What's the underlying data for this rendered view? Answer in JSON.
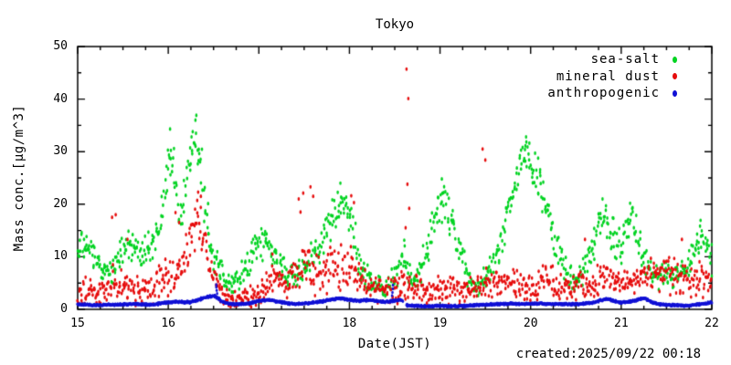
{
  "created_label": "created:2025/09/22 00:18",
  "chart_data": {
    "type": "scatter",
    "title": "Tokyo",
    "xlabel": "Date(JST)",
    "ylabel": "Mass conc.[μg/m^3]",
    "xlim": [
      15,
      22
    ],
    "ylim": [
      0,
      50
    ],
    "x_ticks": [
      15,
      16,
      17,
      18,
      19,
      20,
      21,
      22
    ],
    "y_ticks": [
      0,
      10,
      20,
      30,
      40,
      50
    ],
    "x_minor_step": 0.25,
    "y_minor_step": 5,
    "grid": false,
    "legend_position": "top-right-inside",
    "frame_color": "#000000",
    "background": "#ffffff",
    "series": [
      {
        "name": "sea-salt",
        "color": "#00d321",
        "marker": "dot",
        "marker_rx": 1.3,
        "marker_ry": 2.1,
        "samples_per_day": 144,
        "spread_default": 3,
        "envelope": [
          [
            15.0,
            11,
            3
          ],
          [
            15.1,
            12,
            3
          ],
          [
            15.2,
            9,
            3
          ],
          [
            15.3,
            7,
            2.5
          ],
          [
            15.4,
            8,
            3
          ],
          [
            15.5,
            11,
            3
          ],
          [
            15.6,
            12,
            3
          ],
          [
            15.7,
            10,
            3
          ],
          [
            15.8,
            12,
            3.5
          ],
          [
            15.9,
            15,
            4
          ],
          [
            15.95,
            20,
            5
          ],
          [
            16.0,
            28,
            5
          ],
          [
            16.05,
            30,
            4
          ],
          [
            16.1,
            20,
            5
          ],
          [
            16.15,
            17,
            4
          ],
          [
            16.2,
            24,
            5
          ],
          [
            16.25,
            30,
            4
          ],
          [
            16.3,
            34,
            3
          ],
          [
            16.35,
            29,
            5
          ],
          [
            16.4,
            22,
            6
          ],
          [
            16.45,
            15,
            4
          ],
          [
            16.5,
            10,
            3
          ],
          [
            16.6,
            7,
            2.5
          ],
          [
            16.7,
            5,
            2
          ],
          [
            16.8,
            6,
            2.5
          ],
          [
            16.9,
            9,
            3
          ],
          [
            17.0,
            13,
            3.5
          ],
          [
            17.1,
            12,
            3
          ],
          [
            17.2,
            9,
            3
          ],
          [
            17.3,
            7,
            2.5
          ],
          [
            17.4,
            6,
            2.5
          ],
          [
            17.5,
            8,
            3
          ],
          [
            17.6,
            10,
            3
          ],
          [
            17.7,
            13,
            3.5
          ],
          [
            17.8,
            17,
            4
          ],
          [
            17.9,
            20,
            3.5
          ],
          [
            18.0,
            17,
            4
          ],
          [
            18.05,
            14,
            4
          ],
          [
            18.1,
            9,
            3
          ],
          [
            18.2,
            6,
            2.5
          ],
          [
            18.3,
            4.5,
            2
          ],
          [
            18.4,
            4,
            2
          ],
          [
            18.5,
            6,
            3
          ],
          [
            18.6,
            9,
            4
          ],
          [
            18.7,
            5,
            2
          ],
          [
            18.8,
            8,
            3
          ],
          [
            18.9,
            14,
            4
          ],
          [
            19.0,
            20,
            4
          ],
          [
            19.05,
            21,
            3
          ],
          [
            19.1,
            18,
            4
          ],
          [
            19.2,
            12,
            4
          ],
          [
            19.3,
            6,
            2.5
          ],
          [
            19.4,
            4,
            2
          ],
          [
            19.5,
            6,
            3
          ],
          [
            19.6,
            9,
            3
          ],
          [
            19.7,
            14,
            4
          ],
          [
            19.8,
            22,
            4
          ],
          [
            19.9,
            28,
            4
          ],
          [
            19.95,
            30,
            3
          ],
          [
            20.0,
            28,
            4
          ],
          [
            20.1,
            24,
            4
          ],
          [
            20.2,
            17,
            4
          ],
          [
            20.3,
            12,
            4
          ],
          [
            20.4,
            7,
            3
          ],
          [
            20.5,
            5,
            2
          ],
          [
            20.6,
            8,
            3
          ],
          [
            20.7,
            13,
            4
          ],
          [
            20.8,
            18,
            3.5
          ],
          [
            20.9,
            14,
            4
          ],
          [
            21.0,
            12,
            4
          ],
          [
            21.1,
            19,
            3.5
          ],
          [
            21.2,
            13,
            4
          ],
          [
            21.3,
            8,
            3
          ],
          [
            21.4,
            6,
            2.5
          ],
          [
            21.5,
            7,
            3
          ],
          [
            21.6,
            6,
            3
          ],
          [
            21.7,
            7,
            3
          ],
          [
            21.8,
            11,
            4
          ],
          [
            21.9,
            15,
            3.5
          ],
          [
            22.0,
            9,
            3
          ]
        ],
        "outliers": [
          [
            16.02,
            34.3
          ],
          [
            16.3,
            36.0
          ],
          [
            16.31,
            36.9
          ],
          [
            17.9,
            24.0
          ],
          [
            19.02,
            24.8
          ],
          [
            19.95,
            32.8
          ]
        ],
        "gaps": []
      },
      {
        "name": "mineral dust",
        "color": "#e60c0c",
        "marker": "dot",
        "marker_rx": 1.3,
        "marker_ry": 2.1,
        "samples_per_day": 144,
        "spread_default": 3,
        "envelope": [
          [
            15.0,
            3,
            2.5
          ],
          [
            15.1,
            4,
            3
          ],
          [
            15.2,
            3,
            2.5
          ],
          [
            15.3,
            4,
            3
          ],
          [
            15.4,
            5,
            3.5
          ],
          [
            15.5,
            4,
            3
          ],
          [
            15.6,
            4,
            3
          ],
          [
            15.7,
            3,
            2.5
          ],
          [
            15.8,
            4,
            3
          ],
          [
            15.9,
            5,
            3.5
          ],
          [
            16.0,
            7,
            4
          ],
          [
            16.1,
            6,
            3.5
          ],
          [
            16.2,
            10,
            5
          ],
          [
            16.3,
            15,
            5
          ],
          [
            16.35,
            17,
            4.5
          ],
          [
            16.4,
            12,
            5
          ],
          [
            16.5,
            6,
            3.5
          ],
          [
            16.6,
            3,
            2
          ],
          [
            16.7,
            2,
            1.5
          ],
          [
            16.8,
            2,
            1.5
          ],
          [
            16.9,
            2.5,
            2
          ],
          [
            17.0,
            3,
            2
          ],
          [
            17.1,
            5,
            3
          ],
          [
            17.2,
            6,
            3.5
          ],
          [
            17.3,
            5,
            3
          ],
          [
            17.4,
            6,
            4
          ],
          [
            17.5,
            8,
            5
          ],
          [
            17.6,
            7,
            4.5
          ],
          [
            17.7,
            6,
            4
          ],
          [
            17.8,
            8,
            4
          ],
          [
            17.9,
            8,
            4
          ],
          [
            18.0,
            8,
            4.5
          ],
          [
            18.1,
            6,
            3.5
          ],
          [
            18.2,
            5,
            3
          ],
          [
            18.3,
            4,
            3
          ],
          [
            18.4,
            3.5,
            2.5
          ],
          [
            18.5,
            4,
            3
          ],
          [
            18.6,
            5,
            3.5
          ],
          [
            18.7,
            4,
            3
          ],
          [
            18.8,
            4,
            3
          ],
          [
            18.9,
            3,
            2.5
          ],
          [
            19.0,
            4,
            3
          ],
          [
            19.1,
            4,
            3
          ],
          [
            19.2,
            4,
            3
          ],
          [
            19.3,
            3.5,
            2.5
          ],
          [
            19.4,
            4,
            3
          ],
          [
            19.5,
            5,
            3.5
          ],
          [
            19.6,
            5,
            3
          ],
          [
            19.7,
            4,
            3
          ],
          [
            19.8,
            5,
            3
          ],
          [
            19.9,
            5,
            3
          ],
          [
            20.0,
            4,
            3
          ],
          [
            20.1,
            5,
            3
          ],
          [
            20.2,
            6,
            3.5
          ],
          [
            20.3,
            4,
            3
          ],
          [
            20.4,
            4,
            2.5
          ],
          [
            20.5,
            4,
            2.5
          ],
          [
            20.6,
            5,
            3
          ],
          [
            20.7,
            5,
            3
          ],
          [
            20.8,
            6,
            3
          ],
          [
            20.9,
            6,
            3.5
          ],
          [
            21.0,
            5,
            3
          ],
          [
            21.1,
            5,
            3
          ],
          [
            21.2,
            6,
            3
          ],
          [
            21.3,
            7,
            3.5
          ],
          [
            21.4,
            7,
            3.5
          ],
          [
            21.5,
            7,
            4
          ],
          [
            21.6,
            6,
            3.5
          ],
          [
            21.7,
            6,
            3.5
          ],
          [
            21.8,
            5,
            3
          ],
          [
            21.9,
            6,
            3.5
          ],
          [
            22.0,
            5,
            3
          ]
        ],
        "outliers": [
          [
            15.38,
            17.5
          ],
          [
            15.42,
            18.0
          ],
          [
            15.55,
            13.3
          ],
          [
            16.08,
            18.4
          ],
          [
            16.12,
            16.5
          ],
          [
            16.33,
            22.3
          ],
          [
            16.36,
            21.5
          ],
          [
            17.15,
            10.5
          ],
          [
            17.44,
            21.0
          ],
          [
            17.46,
            18.5
          ],
          [
            17.49,
            22.1
          ],
          [
            17.57,
            23.3
          ],
          [
            17.6,
            21.5
          ],
          [
            18.02,
            21.6
          ],
          [
            18.05,
            20.3
          ],
          [
            18.62,
            15.5
          ],
          [
            18.63,
            45.7
          ],
          [
            18.64,
            23.8
          ],
          [
            18.65,
            40.1
          ],
          [
            18.66,
            19.2
          ],
          [
            19.47,
            30.5
          ],
          [
            19.5,
            28.4
          ],
          [
            20.6,
            13.3
          ],
          [
            21.67,
            13.3
          ]
        ],
        "gaps": []
      },
      {
        "name": "anthropogenic",
        "color": "#1010d5",
        "marker": "dot",
        "marker_rx": 1.3,
        "marker_ry": 1.7,
        "samples_per_day": 288,
        "spread_default": 0.2,
        "envelope": [
          [
            15.0,
            0.9
          ],
          [
            15.2,
            0.8
          ],
          [
            15.4,
            0.9
          ],
          [
            15.6,
            1.0
          ],
          [
            15.8,
            0.9
          ],
          [
            16.0,
            1.3
          ],
          [
            16.1,
            1.5
          ],
          [
            16.2,
            1.3
          ],
          [
            16.3,
            1.6
          ],
          [
            16.4,
            2.2
          ],
          [
            16.5,
            2.6
          ],
          [
            16.55,
            2.1
          ],
          [
            16.6,
            1.3
          ],
          [
            16.7,
            1.0
          ],
          [
            16.8,
            1.0
          ],
          [
            16.9,
            1.2
          ],
          [
            17.0,
            1.6
          ],
          [
            17.1,
            1.8
          ],
          [
            17.2,
            1.5
          ],
          [
            17.3,
            1.2
          ],
          [
            17.4,
            1.0
          ],
          [
            17.5,
            1.1
          ],
          [
            17.6,
            1.3
          ],
          [
            17.7,
            1.5
          ],
          [
            17.8,
            1.9
          ],
          [
            17.9,
            2.1
          ],
          [
            18.0,
            1.8
          ],
          [
            18.1,
            1.6
          ],
          [
            18.2,
            1.8
          ],
          [
            18.3,
            1.6
          ],
          [
            18.4,
            1.4
          ],
          [
            18.5,
            1.6
          ],
          [
            18.57,
            1.9
          ],
          [
            18.62,
            0.8
          ],
          [
            18.7,
            0.7
          ],
          [
            18.8,
            0.6
          ],
          [
            18.9,
            0.6
          ],
          [
            19.0,
            0.7
          ],
          [
            19.1,
            0.6
          ],
          [
            19.2,
            0.6
          ],
          [
            19.3,
            0.7
          ],
          [
            19.4,
            0.8
          ],
          [
            19.5,
            0.9
          ],
          [
            19.6,
            1.0
          ],
          [
            19.7,
            1.0
          ],
          [
            19.8,
            1.1
          ],
          [
            19.9,
            1.0
          ],
          [
            20.0,
            1.1
          ],
          [
            20.1,
            1.1
          ],
          [
            20.2,
            1.0
          ],
          [
            20.3,
            1.0
          ],
          [
            20.4,
            1.0
          ],
          [
            20.5,
            1.0
          ],
          [
            20.6,
            1.1
          ],
          [
            20.7,
            1.3
          ],
          [
            20.8,
            1.8
          ],
          [
            20.85,
            2.0
          ],
          [
            20.9,
            1.7
          ],
          [
            21.0,
            1.3
          ],
          [
            21.1,
            1.5
          ],
          [
            21.2,
            1.9
          ],
          [
            21.25,
            2.1
          ],
          [
            21.3,
            1.7
          ],
          [
            21.4,
            1.0
          ],
          [
            21.5,
            0.8
          ],
          [
            21.6,
            0.8
          ],
          [
            21.7,
            0.7
          ],
          [
            21.8,
            0.8
          ],
          [
            21.9,
            1.1
          ],
          [
            22.0,
            1.3
          ]
        ],
        "outliers": [
          [
            16.53,
            4.7
          ],
          [
            16.53,
            4.2
          ],
          [
            16.535,
            3.6
          ],
          [
            16.54,
            3.0
          ],
          [
            18.47,
            2.6
          ],
          [
            18.475,
            3.2
          ],
          [
            18.48,
            3.9
          ],
          [
            18.48,
            4.6
          ]
        ],
        "gaps": [
          [
            18.585,
            18.625
          ]
        ]
      }
    ]
  }
}
